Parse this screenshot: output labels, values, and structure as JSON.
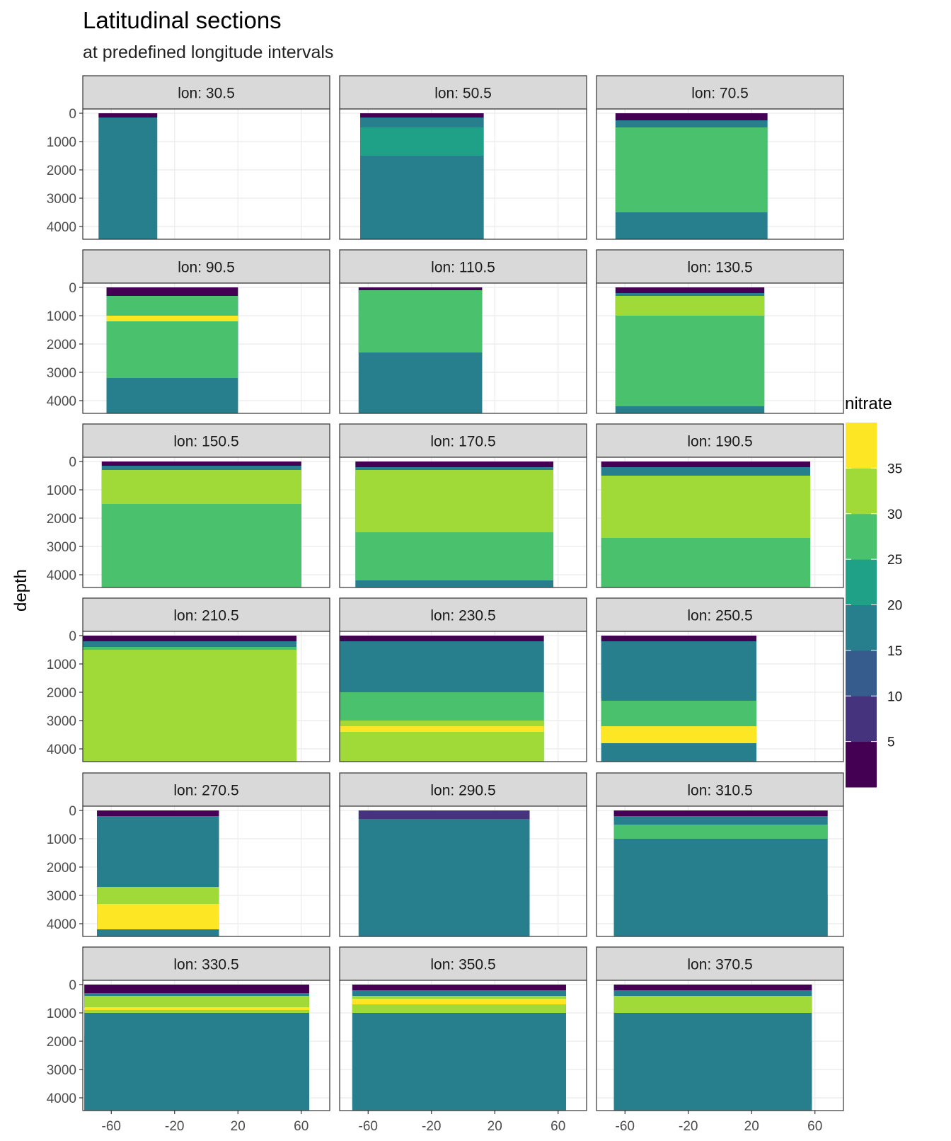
{
  "chart_data": {
    "type": "heatmap",
    "title": "Latitudinal sections",
    "subtitle": "at predefined longitude intervals",
    "ylabel": "depth",
    "xlabel": "",
    "facet_prefix": "lon: ",
    "panels": [
      30.5,
      50.5,
      70.5,
      90.5,
      110.5,
      130.5,
      150.5,
      170.5,
      190.5,
      210.5,
      230.5,
      250.5,
      270.5,
      290.5,
      310.5,
      330.5,
      350.5,
      370.5
    ],
    "facet_labels": [
      "lon: 30.5",
      "lon: 50.5",
      "lon: 70.5",
      "lon: 90.5",
      "lon: 110.5",
      "lon: 130.5",
      "lon: 150.5",
      "lon: 170.5",
      "lon: 190.5",
      "lon: 210.5",
      "lon: 230.5",
      "lon: 250.5",
      "lon: 270.5",
      "lon: 290.5",
      "lon: 310.5",
      "lon: 330.5",
      "lon: 350.5",
      "lon: 370.5"
    ],
    "ncol": 3,
    "nrow": 6,
    "x_ticks": [
      -60,
      -20,
      20,
      60
    ],
    "x_tick_labels": [
      "-60",
      "-20",
      "20",
      "60"
    ],
    "xlim": [
      -78,
      78
    ],
    "y_ticks": [
      0,
      1000,
      2000,
      3000,
      4000
    ],
    "y_tick_labels": [
      "0",
      "1000",
      "2000",
      "3000",
      "4000"
    ],
    "ylim": [
      4450,
      -150
    ],
    "y_reversed": true,
    "grid": true,
    "legend": {
      "title": "nitrate",
      "position": "right",
      "breaks": [
        5,
        10,
        15,
        20,
        25,
        30,
        35
      ],
      "break_labels": [
        "5",
        "10",
        "15",
        "20",
        "25",
        "30",
        "35"
      ],
      "colors": [
        "#440154",
        "#46337E",
        "#365C8D",
        "#277F8E",
        "#1FA187",
        "#4AC16D",
        "#A0DA39",
        "#FDE725"
      ]
    },
    "sections": [
      {
        "lon": 30.5,
        "lat_min": -68,
        "lat_max": -31,
        "max_depth": 4500,
        "levels": [
          [
            3,
            0,
            150
          ],
          [
            17,
            200,
            4500
          ]
        ]
      },
      {
        "lon": 50.5,
        "lat_min": -65,
        "lat_max": 13,
        "max_depth": 4500,
        "levels": [
          [
            3,
            0,
            150
          ],
          [
            20,
            150,
            4500
          ],
          [
            25,
            500,
            1500
          ]
        ]
      },
      {
        "lon": 70.5,
        "lat_min": -66,
        "lat_max": 30,
        "max_depth": 4500,
        "levels": [
          [
            3,
            0,
            250
          ],
          [
            20,
            250,
            4500
          ],
          [
            27,
            500,
            3500
          ]
        ]
      },
      {
        "lon": 90.5,
        "lat_min": -63,
        "lat_max": 20,
        "max_depth": 4500,
        "levels": [
          [
            3,
            0,
            400
          ],
          [
            20,
            300,
            4500
          ],
          [
            28,
            300,
            3200
          ],
          [
            37,
            1000,
            1200
          ]
        ]
      },
      {
        "lon": 110.5,
        "lat_min": -66,
        "lat_max": 12,
        "max_depth": 4500,
        "levels": [
          [
            3,
            0,
            200
          ],
          [
            20,
            200,
            4500
          ],
          [
            27,
            100,
            2300
          ]
        ]
      },
      {
        "lon": 130.5,
        "lat_min": -66,
        "lat_max": 28,
        "max_depth": 4500,
        "levels": [
          [
            3,
            0,
            200
          ],
          [
            20,
            200,
            4500
          ],
          [
            26,
            300,
            4200
          ],
          [
            31,
            300,
            1000
          ]
        ]
      },
      {
        "lon": 150.5,
        "lat_min": -66,
        "lat_max": 60,
        "max_depth": 4500,
        "levels": [
          [
            3,
            0,
            150
          ],
          [
            20,
            150,
            4500
          ],
          [
            27,
            500,
            4500
          ],
          [
            31,
            300,
            1500
          ]
        ]
      },
      {
        "lon": 170.5,
        "lat_min": -68,
        "lat_max": 57,
        "max_depth": 4500,
        "levels": [
          [
            3,
            0,
            200
          ],
          [
            20,
            200,
            4500
          ],
          [
            27,
            500,
            4200
          ],
          [
            31,
            300,
            2500
          ]
        ]
      },
      {
        "lon": 190.5,
        "lat_min": -75,
        "lat_max": 57,
        "max_depth": 4500,
        "levels": [
          [
            3,
            0,
            200
          ],
          [
            20,
            200,
            4500
          ],
          [
            27,
            500,
            4500
          ],
          [
            31,
            500,
            2700
          ]
        ]
      },
      {
        "lon": 210.5,
        "lat_min": -78,
        "lat_max": 57,
        "max_depth": 4500,
        "levels": [
          [
            3,
            0,
            300
          ],
          [
            10,
            500,
            1700
          ],
          [
            20,
            200,
            4500
          ],
          [
            27,
            400,
            3200
          ],
          [
            31,
            500,
            4500
          ]
        ]
      },
      {
        "lon": 230.5,
        "lat_min": -78,
        "lat_max": 51,
        "max_depth": 4500,
        "levels": [
          [
            3,
            0,
            200
          ],
          [
            3,
            300,
            2000
          ],
          [
            20,
            200,
            4500
          ],
          [
            27,
            2000,
            4500
          ],
          [
            31,
            3000,
            4500
          ],
          [
            37,
            3200,
            3400
          ]
        ]
      },
      {
        "lon": 250.5,
        "lat_min": -75,
        "lat_max": 23,
        "max_depth": 4500,
        "levels": [
          [
            3,
            0,
            250
          ],
          [
            3,
            300,
            2200
          ],
          [
            20,
            200,
            4500
          ],
          [
            27,
            2300,
            3500
          ],
          [
            37,
            3200,
            3800
          ]
        ]
      },
      {
        "lon": 270.5,
        "lat_min": -69,
        "lat_max": 8,
        "max_depth": 4500,
        "levels": [
          [
            3,
            0,
            200
          ],
          [
            3,
            300,
            2000
          ],
          [
            20,
            200,
            4500
          ],
          [
            31,
            2700,
            3700
          ],
          [
            37,
            3300,
            4200
          ]
        ]
      },
      {
        "lon": 290.5,
        "lat_min": -66,
        "lat_max": 42,
        "max_depth": 4500,
        "levels": [
          [
            10,
            0,
            300
          ],
          [
            20,
            300,
            1800
          ],
          [
            17,
            1800,
            4500
          ]
        ]
      },
      {
        "lon": 310.5,
        "lat_min": -67,
        "lat_max": 68,
        "max_depth": 4500,
        "levels": [
          [
            3,
            0,
            200
          ],
          [
            20,
            200,
            4500
          ],
          [
            17,
            3000,
            4500
          ],
          [
            27,
            500,
            1000
          ]
        ]
      },
      {
        "lon": 330.5,
        "lat_min": -77,
        "lat_max": 65,
        "max_depth": 4500,
        "levels": [
          [
            3,
            0,
            300
          ],
          [
            20,
            300,
            4500
          ],
          [
            17,
            1800,
            4500
          ],
          [
            31,
            400,
            1000
          ],
          [
            37,
            800,
            900
          ]
        ]
      },
      {
        "lon": 350.5,
        "lat_min": -70,
        "lat_max": 65,
        "max_depth": 4500,
        "levels": [
          [
            3,
            0,
            200
          ],
          [
            20,
            200,
            4500
          ],
          [
            17,
            2000,
            4300
          ],
          [
            31,
            400,
            1000
          ],
          [
            37,
            500,
            700
          ]
        ]
      },
      {
        "lon": 370.5,
        "lat_min": -67,
        "lat_max": 58,
        "max_depth": 4500,
        "levels": [
          [
            3,
            0,
            200
          ],
          [
            20,
            200,
            4500
          ],
          [
            17,
            2000,
            4300
          ],
          [
            31,
            400,
            1000
          ]
        ]
      }
    ]
  }
}
